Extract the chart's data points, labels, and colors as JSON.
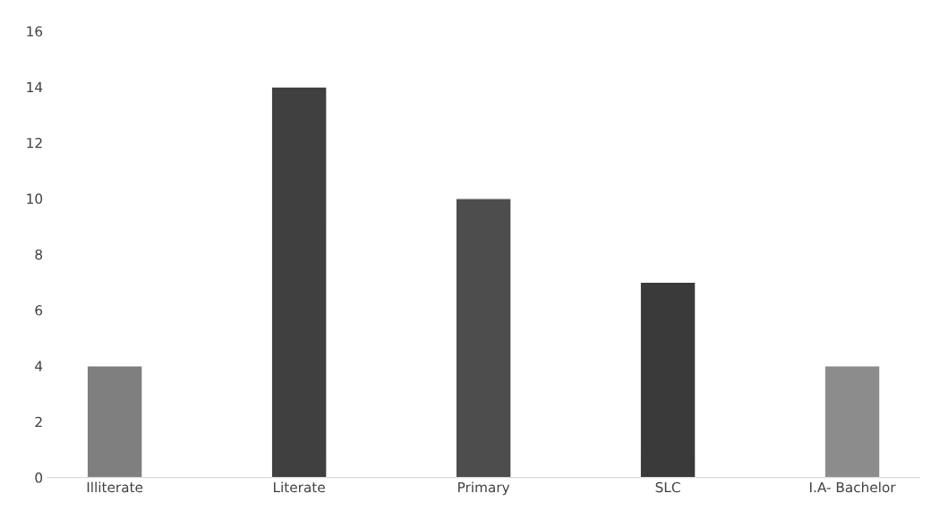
{
  "chart_data": {
    "type": "bar",
    "categories": [
      "Illiterate",
      "Literate",
      "Primary",
      "SLC",
      "I.A- Bachelor"
    ],
    "values": [
      4,
      14,
      10,
      7,
      4
    ],
    "colors": [
      "#7f7f7f",
      "#404040",
      "#4d4d4d",
      "#3a3a3a",
      "#8c8c8c"
    ],
    "ylim": [
      0,
      16
    ],
    "yticks": [
      0,
      2,
      4,
      6,
      8,
      10,
      12,
      14,
      16
    ],
    "grid": false
  }
}
